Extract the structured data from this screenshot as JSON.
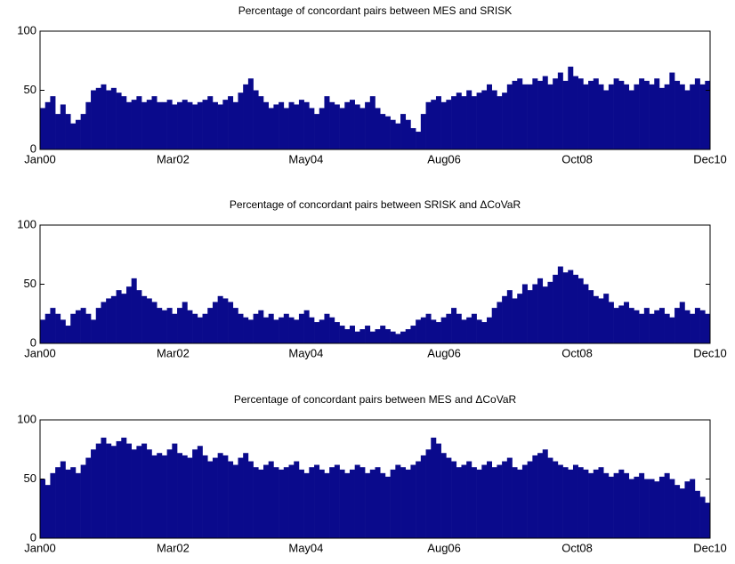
{
  "chart_data": [
    {
      "type": "bar",
      "title": "Percentage of concordant pairs between MES and SRISK",
      "color": "#0a0a8c",
      "categories": [
        "Jan00",
        null,
        null,
        null,
        null,
        null,
        null,
        null,
        null,
        null,
        null,
        null,
        null,
        null,
        null,
        null,
        null,
        null,
        null,
        null,
        null,
        null,
        null,
        null,
        null,
        null,
        "Mar02",
        null,
        null,
        null,
        null,
        null,
        null,
        null,
        null,
        null,
        null,
        null,
        null,
        null,
        null,
        null,
        null,
        null,
        null,
        null,
        null,
        null,
        null,
        null,
        null,
        null,
        "May04",
        null,
        null,
        null,
        null,
        null,
        null,
        null,
        null,
        null,
        null,
        null,
        null,
        null,
        null,
        null,
        null,
        null,
        null,
        null,
        null,
        null,
        null,
        null,
        null,
        null,
        null,
        "Aug06",
        null,
        null,
        null,
        null,
        null,
        null,
        null,
        null,
        null,
        null,
        null,
        null,
        null,
        null,
        null,
        null,
        null,
        null,
        null,
        null,
        null,
        null,
        null,
        null,
        null,
        "Oct08",
        null,
        null,
        null,
        null,
        null,
        null,
        null,
        null,
        null,
        null,
        null,
        null,
        null,
        null,
        null,
        null,
        null,
        null,
        null,
        null,
        null,
        null,
        null,
        null,
        null,
        "Dec10"
      ],
      "values": [
        35,
        40,
        45,
        30,
        38,
        30,
        22,
        25,
        30,
        40,
        50,
        52,
        55,
        50,
        52,
        48,
        45,
        40,
        42,
        45,
        40,
        42,
        45,
        40,
        40,
        42,
        38,
        40,
        42,
        40,
        38,
        40,
        42,
        45,
        40,
        38,
        42,
        45,
        40,
        48,
        55,
        60,
        50,
        45,
        40,
        35,
        38,
        40,
        35,
        40,
        38,
        42,
        40,
        35,
        30,
        35,
        45,
        40,
        38,
        35,
        40,
        42,
        38,
        35,
        40,
        45,
        35,
        30,
        28,
        25,
        22,
        30,
        25,
        18,
        15,
        30,
        40,
        42,
        45,
        40,
        42,
        45,
        48,
        45,
        50,
        45,
        48,
        50,
        55,
        50,
        45,
        48,
        55,
        58,
        60,
        55,
        55,
        60,
        58,
        62,
        55,
        60,
        65,
        58,
        70,
        62,
        60,
        55,
        58,
        60,
        55,
        50,
        55,
        60,
        58,
        55,
        50,
        55,
        60,
        58,
        55,
        60,
        52,
        55,
        65,
        58,
        55,
        50,
        55,
        60,
        55,
        58
      ],
      "ylim": [
        0,
        100
      ],
      "yticks": [
        0,
        50,
        100
      ]
    },
    {
      "type": "bar",
      "title": "Percentage of concordant pairs between SRISK and ΔCoVaR",
      "color": "#0a0a8c",
      "categories": [
        "Jan00",
        null,
        null,
        null,
        null,
        null,
        null,
        null,
        null,
        null,
        null,
        null,
        null,
        null,
        null,
        null,
        null,
        null,
        null,
        null,
        null,
        null,
        null,
        null,
        null,
        null,
        "Mar02",
        null,
        null,
        null,
        null,
        null,
        null,
        null,
        null,
        null,
        null,
        null,
        null,
        null,
        null,
        null,
        null,
        null,
        null,
        null,
        null,
        null,
        null,
        null,
        null,
        null,
        "May04",
        null,
        null,
        null,
        null,
        null,
        null,
        null,
        null,
        null,
        null,
        null,
        null,
        null,
        null,
        null,
        null,
        null,
        null,
        null,
        null,
        null,
        null,
        null,
        null,
        null,
        null,
        "Aug06",
        null,
        null,
        null,
        null,
        null,
        null,
        null,
        null,
        null,
        null,
        null,
        null,
        null,
        null,
        null,
        null,
        null,
        null,
        null,
        null,
        null,
        null,
        null,
        null,
        null,
        "Oct08",
        null,
        null,
        null,
        null,
        null,
        null,
        null,
        null,
        null,
        null,
        null,
        null,
        null,
        null,
        null,
        null,
        null,
        null,
        null,
        null,
        null,
        null,
        null,
        null,
        null,
        "Dec10"
      ],
      "values": [
        20,
        25,
        30,
        25,
        20,
        15,
        25,
        28,
        30,
        25,
        20,
        30,
        35,
        38,
        40,
        45,
        42,
        48,
        55,
        45,
        40,
        38,
        35,
        30,
        28,
        30,
        25,
        30,
        35,
        28,
        25,
        22,
        25,
        30,
        35,
        40,
        38,
        35,
        30,
        25,
        22,
        20,
        25,
        28,
        22,
        25,
        20,
        22,
        25,
        22,
        20,
        25,
        28,
        22,
        18,
        20,
        25,
        22,
        18,
        15,
        12,
        15,
        10,
        12,
        15,
        10,
        12,
        15,
        12,
        10,
        8,
        10,
        12,
        15,
        20,
        22,
        25,
        20,
        18,
        22,
        25,
        30,
        25,
        20,
        22,
        25,
        20,
        18,
        22,
        30,
        35,
        40,
        45,
        38,
        42,
        50,
        45,
        50,
        55,
        48,
        52,
        58,
        65,
        60,
        62,
        58,
        55,
        50,
        45,
        40,
        38,
        42,
        35,
        30,
        32,
        35,
        30,
        28,
        25,
        30,
        25,
        28,
        30,
        25,
        22,
        30,
        35,
        28,
        25,
        30,
        28,
        25
      ],
      "ylim": [
        0,
        100
      ],
      "yticks": [
        0,
        50,
        100
      ]
    },
    {
      "type": "bar",
      "title": "Percentage of concordant pairs between MES and ΔCoVaR",
      "color": "#0a0a8c",
      "categories": [
        "Jan00",
        null,
        null,
        null,
        null,
        null,
        null,
        null,
        null,
        null,
        null,
        null,
        null,
        null,
        null,
        null,
        null,
        null,
        null,
        null,
        null,
        null,
        null,
        null,
        null,
        null,
        "Mar02",
        null,
        null,
        null,
        null,
        null,
        null,
        null,
        null,
        null,
        null,
        null,
        null,
        null,
        null,
        null,
        null,
        null,
        null,
        null,
        null,
        null,
        null,
        null,
        null,
        null,
        "May04",
        null,
        null,
        null,
        null,
        null,
        null,
        null,
        null,
        null,
        null,
        null,
        null,
        null,
        null,
        null,
        null,
        null,
        null,
        null,
        null,
        null,
        null,
        null,
        null,
        null,
        null,
        "Aug06",
        null,
        null,
        null,
        null,
        null,
        null,
        null,
        null,
        null,
        null,
        null,
        null,
        null,
        null,
        null,
        null,
        null,
        null,
        null,
        null,
        null,
        null,
        null,
        null,
        null,
        "Oct08",
        null,
        null,
        null,
        null,
        null,
        null,
        null,
        null,
        null,
        null,
        null,
        null,
        null,
        null,
        null,
        null,
        null,
        null,
        null,
        null,
        null,
        null,
        null,
        null,
        null,
        "Dec10"
      ],
      "values": [
        50,
        45,
        55,
        60,
        65,
        58,
        60,
        55,
        62,
        68,
        75,
        80,
        85,
        80,
        78,
        82,
        85,
        80,
        75,
        78,
        80,
        75,
        70,
        72,
        70,
        75,
        80,
        72,
        70,
        68,
        75,
        78,
        70,
        65,
        68,
        72,
        70,
        65,
        62,
        68,
        72,
        65,
        60,
        58,
        62,
        65,
        60,
        58,
        60,
        62,
        65,
        58,
        55,
        60,
        62,
        58,
        55,
        60,
        62,
        58,
        55,
        58,
        62,
        60,
        55,
        58,
        60,
        55,
        52,
        58,
        62,
        60,
        58,
        62,
        65,
        70,
        75,
        85,
        80,
        72,
        68,
        65,
        60,
        62,
        65,
        60,
        58,
        62,
        65,
        60,
        62,
        65,
        68,
        60,
        58,
        62,
        65,
        70,
        72,
        75,
        68,
        65,
        62,
        60,
        58,
        62,
        60,
        58,
        55,
        58,
        60,
        55,
        52,
        55,
        58,
        55,
        50,
        52,
        55,
        50,
        50,
        48,
        52,
        55,
        50,
        45,
        42,
        48,
        50,
        40,
        35,
        30
      ],
      "ylim": [
        0,
        100
      ],
      "yticks": [
        0,
        50,
        100
      ]
    }
  ]
}
